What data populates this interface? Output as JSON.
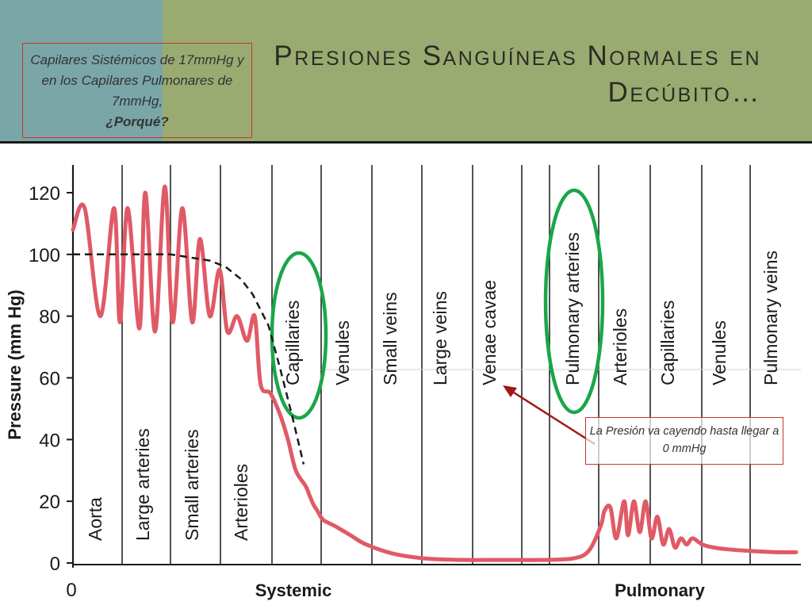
{
  "slide": {
    "title": "Presiones Sanguíneas Normales en Decúbito…",
    "note_top_line1": "Capilares Sistémicos de 17mmHg y  en los Capilares Pulmonares  de 7mmHg,",
    "note_top_line2": "¿Porqué?",
    "note_bottom": "La Presión va cayendo hasta llegar a 0 mmHg",
    "colors": {
      "header": "#9aab72",
      "header_left": "#7aa6a8",
      "curve": "#e05a66",
      "highlight": "#1aa64a",
      "arrow": "#a01818"
    }
  },
  "chart_data": {
    "type": "line",
    "title": "",
    "ylabel": "Pressure (mm Hg)",
    "xlabel": "",
    "ylim": [
      0,
      130
    ],
    "yticks": [
      0,
      20,
      40,
      60,
      80,
      100,
      120
    ],
    "x_origin_label": "0",
    "groups": [
      "Systemic",
      "Pulmonary"
    ],
    "segments": [
      "Aorta",
      "Large arteries",
      "Small arteries",
      "Arterioles",
      "Capillaries",
      "Venules",
      "Small veins",
      "Large veins",
      "Venae cavae",
      "Pulmonary arteries",
      "Arterioles",
      "Capillaries",
      "Venules",
      "Pulmonary veins"
    ],
    "highlighted_segments": [
      4,
      9
    ],
    "series": [
      {
        "name": "",
        "style": "pulsatile",
        "x": [
          0,
          0.3,
          0.7,
          1.05,
          1.2,
          1.4,
          1.7,
          1.85,
          2.1,
          2.35,
          2.55,
          2.8,
          3.05,
          3.25,
          3.5,
          3.75,
          3.95,
          4.2,
          4.45,
          4.65,
          4.8,
          5.05,
          5.3,
          5.5,
          5.7,
          5.95,
          6.05,
          6.15,
          6.25,
          6.4,
          6.7,
          7.1,
          7.5,
          8.2,
          9,
          10,
          11,
          12,
          12.8,
          13.2,
          13.5,
          13.6,
          13.75,
          13.9,
          14.1,
          14.2,
          14.35,
          14.5,
          14.65,
          14.8,
          14.95,
          15.1,
          15.25,
          15.4,
          15.55,
          15.7,
          15.85,
          16.1,
          16.4,
          16.7,
          17.2,
          18,
          18.5
        ],
        "y": [
          108,
          115,
          80,
          115,
          78,
          115,
          76,
          120,
          75,
          122,
          78,
          115,
          78,
          105,
          80,
          95,
          75,
          80,
          72,
          80,
          58,
          55,
          48,
          40,
          30,
          25,
          22,
          19,
          17,
          14,
          12,
          9,
          6,
          3,
          1.5,
          1,
          1,
          1,
          1.5,
          4,
          12,
          17,
          18,
          8,
          20,
          9,
          20,
          10,
          20,
          8,
          15,
          6,
          11,
          5,
          8,
          6,
          8,
          6,
          5,
          4.5,
          4,
          3.5,
          3.5
        ]
      },
      {
        "name": "",
        "style": "dashed",
        "x": [
          0,
          1.5,
          2.5,
          3.0,
          3.5,
          3.9,
          4.3,
          4.6,
          5.0,
          5.3,
          5.6,
          5.9
        ],
        "y": [
          100,
          100,
          100,
          99,
          98,
          96,
          92,
          87,
          77,
          63,
          48,
          32
        ]
      }
    ]
  }
}
